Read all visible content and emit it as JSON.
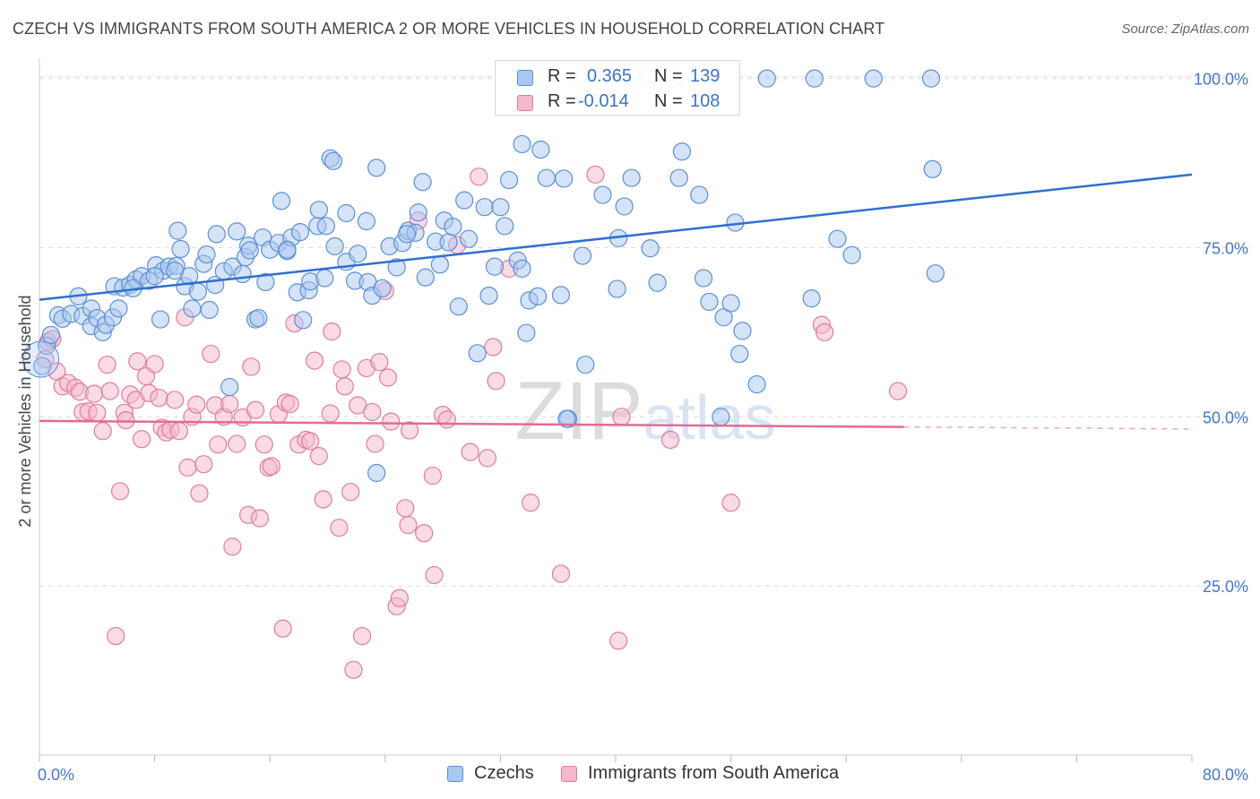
{
  "header": {
    "title": "CZECH VS IMMIGRANTS FROM SOUTH AMERICA 2 OR MORE VEHICLES IN HOUSEHOLD CORRELATION CHART",
    "source": "Source: ZipAtlas.com"
  },
  "watermark": "ZIPatlas",
  "legend_top": {
    "rows": [
      {
        "r_label": "R =",
        "r_value": "0.365",
        "n_label": "N =",
        "n_value": "139"
      },
      {
        "r_label": "R =",
        "r_value": "-0.014",
        "n_label": "N =",
        "n_value": "108"
      }
    ]
  },
  "colors": {
    "blue_fill": "#a9c8f0",
    "blue_stroke": "#5b8fd6",
    "blue_line": "#2f6fd0",
    "pink_fill": "#f6b8cc",
    "pink_stroke": "#e07ba0",
    "pink_line": "#e36a95",
    "grid": "#dcdcdc",
    "axis_text": "#4477cc"
  },
  "chart_data": {
    "type": "scatter",
    "title": "CZECH VS IMMIGRANTS FROM SOUTH AMERICA 2 OR MORE VEHICLES IN HOUSEHOLD CORRELATION CHART",
    "xlabel": "",
    "ylabel": "2 or more Vehicles in Household",
    "xlim": [
      0,
      80
    ],
    "ylim": [
      0,
      103
    ],
    "x_tick_labels": [
      "0.0%",
      "80.0%"
    ],
    "y_ticks": [
      25,
      50,
      75,
      100
    ],
    "y_tick_labels": [
      "25.0%",
      "50.0%",
      "75.0%",
      "100.0%"
    ],
    "grid": "horizontal dashed",
    "legend_position": "bottom",
    "series": [
      {
        "name": "Czechs",
        "R": 0.365,
        "N": 139,
        "trend": {
          "x": [
            0,
            80
          ],
          "y": [
            67.3,
            85.8
          ]
        },
        "points": [
          [
            0.2,
            57.5
          ],
          [
            0.5,
            60.5
          ],
          [
            0.8,
            62.1
          ],
          [
            1.3,
            65.0
          ],
          [
            1.6,
            64.5
          ],
          [
            2.2,
            65.2
          ],
          [
            2.7,
            67.8
          ],
          [
            3.0,
            64.9
          ],
          [
            3.6,
            63.4
          ],
          [
            3.6,
            66.0
          ],
          [
            4.0,
            64.6
          ],
          [
            4.4,
            62.5
          ],
          [
            4.6,
            63.6
          ],
          [
            5.1,
            64.7
          ],
          [
            5.2,
            69.3
          ],
          [
            5.8,
            69.1
          ],
          [
            6.3,
            69.5
          ],
          [
            6.7,
            70.3
          ],
          [
            7.1,
            70.8
          ],
          [
            7.6,
            70.1
          ],
          [
            8.1,
            72.4
          ],
          [
            8.4,
            64.4
          ],
          [
            8.6,
            71.6
          ],
          [
            9.0,
            72.2
          ],
          [
            9.5,
            72.3
          ],
          [
            9.6,
            77.5
          ],
          [
            9.8,
            74.8
          ],
          [
            10.1,
            69.3
          ],
          [
            10.4,
            70.8
          ],
          [
            10.6,
            66.0
          ],
          [
            11.0,
            68.5
          ],
          [
            11.4,
            72.6
          ],
          [
            11.6,
            74.0
          ],
          [
            12.2,
            69.5
          ],
          [
            12.3,
            77.0
          ],
          [
            12.8,
            71.5
          ],
          [
            13.4,
            72.2
          ],
          [
            13.7,
            77.4
          ],
          [
            14.1,
            71.1
          ],
          [
            14.3,
            73.6
          ],
          [
            14.5,
            75.3
          ],
          [
            15.0,
            64.4
          ],
          [
            15.2,
            64.6
          ],
          [
            15.5,
            76.5
          ],
          [
            15.7,
            69.9
          ],
          [
            16.0,
            74.7
          ],
          [
            16.6,
            75.7
          ],
          [
            16.8,
            81.9
          ],
          [
            17.2,
            74.5
          ],
          [
            17.5,
            76.5
          ],
          [
            17.9,
            68.4
          ],
          [
            18.1,
            77.3
          ],
          [
            18.3,
            64.3
          ],
          [
            18.7,
            68.7
          ],
          [
            18.8,
            70.0
          ],
          [
            19.3,
            78.2
          ],
          [
            19.4,
            80.6
          ],
          [
            19.9,
            78.2
          ],
          [
            20.2,
            88.2
          ],
          [
            20.4,
            87.8
          ],
          [
            20.5,
            75.2
          ],
          [
            21.3,
            72.9
          ],
          [
            21.3,
            80.1
          ],
          [
            21.9,
            70.1
          ],
          [
            22.1,
            74.1
          ],
          [
            22.7,
            78.9
          ],
          [
            22.8,
            69.9
          ],
          [
            23.1,
            67.9
          ],
          [
            23.4,
            86.8
          ],
          [
            23.8,
            69.0
          ],
          [
            24.3,
            75.2
          ],
          [
            24.8,
            72.1
          ],
          [
            25.2,
            75.7
          ],
          [
            25.6,
            77.5
          ],
          [
            26.1,
            77.2
          ],
          [
            26.3,
            80.2
          ],
          [
            26.6,
            84.7
          ],
          [
            26.8,
            70.6
          ],
          [
            27.5,
            75.9
          ],
          [
            27.8,
            72.5
          ],
          [
            28.1,
            79.0
          ],
          [
            28.4,
            75.8
          ],
          [
            28.7,
            78.1
          ],
          [
            29.1,
            66.3
          ],
          [
            29.5,
            82.0
          ],
          [
            29.8,
            76.3
          ],
          [
            30.4,
            59.4
          ],
          [
            30.9,
            81.0
          ],
          [
            31.2,
            67.9
          ],
          [
            31.6,
            72.2
          ],
          [
            32.0,
            81.0
          ],
          [
            32.3,
            78.2
          ],
          [
            32.6,
            85.0
          ],
          [
            33.2,
            73.1
          ],
          [
            33.5,
            71.9
          ],
          [
            33.8,
            62.4
          ],
          [
            34.0,
            67.2
          ],
          [
            34.6,
            67.8
          ],
          [
            34.8,
            89.5
          ],
          [
            35.2,
            85.3
          ],
          [
            36.2,
            68.0
          ],
          [
            36.4,
            85.2
          ],
          [
            36.7,
            49.7
          ],
          [
            37.4,
            100.0
          ],
          [
            37.7,
            73.8
          ],
          [
            37.9,
            57.7
          ],
          [
            39.1,
            82.8
          ],
          [
            40.2,
            76.4
          ],
          [
            40.1,
            68.9
          ],
          [
            40.6,
            81.1
          ],
          [
            41.1,
            85.3
          ],
          [
            42.2,
            100.0
          ],
          [
            42.4,
            74.9
          ],
          [
            42.9,
            69.8
          ],
          [
            44.4,
            85.3
          ],
          [
            44.6,
            89.2
          ],
          [
            45.8,
            82.8
          ],
          [
            46.1,
            70.5
          ],
          [
            46.5,
            67.0
          ],
          [
            47.5,
            64.7
          ],
          [
            48.0,
            66.8
          ],
          [
            48.3,
            78.7
          ],
          [
            48.6,
            59.3
          ],
          [
            48.8,
            62.7
          ],
          [
            49.8,
            54.8
          ],
          [
            50.5,
            100.0
          ],
          [
            53.6,
            67.5
          ],
          [
            53.8,
            100.0
          ],
          [
            55.4,
            76.3
          ],
          [
            56.4,
            73.9
          ],
          [
            57.9,
            100.0
          ],
          [
            61.9,
            100.0
          ],
          [
            62.0,
            86.6
          ],
          [
            62.2,
            71.2
          ],
          [
            47.3,
            50.0
          ],
          [
            36.6,
            49.7
          ],
          [
            25.5,
            77.0
          ],
          [
            14.6,
            74.6
          ],
          [
            13.2,
            54.4
          ],
          [
            11.8,
            65.8
          ],
          [
            9.4,
            71.6
          ],
          [
            8.0,
            70.8
          ],
          [
            23.4,
            41.7
          ],
          [
            33.5,
            90.3
          ],
          [
            44.0,
            100.0
          ],
          [
            19.8,
            70.5
          ],
          [
            5.5,
            66.0
          ],
          [
            6.5,
            69.0
          ],
          [
            17.2,
            74.7
          ]
        ]
      },
      {
        "name": "Immigrants from South America",
        "R": -0.014,
        "N": 108,
        "trend": {
          "x": [
            0,
            60
          ],
          "y": [
            49.4,
            48.5
          ]
        },
        "trend_dashed": {
          "x": [
            60,
            80
          ],
          "y": [
            48.5,
            48.2
          ]
        },
        "points": [
          [
            0.4,
            58.5
          ],
          [
            0.6,
            61.1
          ],
          [
            0.9,
            61.5
          ],
          [
            1.2,
            56.7
          ],
          [
            1.6,
            54.5
          ],
          [
            2.0,
            55.0
          ],
          [
            2.5,
            54.3
          ],
          [
            2.8,
            53.7
          ],
          [
            3.0,
            50.7
          ],
          [
            3.4,
            50.8
          ],
          [
            3.8,
            53.4
          ],
          [
            4.0,
            50.6
          ],
          [
            4.4,
            47.9
          ],
          [
            4.7,
            57.7
          ],
          [
            4.9,
            53.8
          ],
          [
            5.3,
            17.6
          ],
          [
            5.6,
            39.0
          ],
          [
            5.9,
            50.6
          ],
          [
            6.0,
            49.5
          ],
          [
            6.3,
            53.3
          ],
          [
            6.7,
            52.5
          ],
          [
            6.8,
            58.2
          ],
          [
            7.1,
            46.7
          ],
          [
            7.4,
            56.0
          ],
          [
            7.6,
            53.5
          ],
          [
            8.0,
            57.8
          ],
          [
            8.3,
            52.8
          ],
          [
            8.5,
            48.4
          ],
          [
            8.8,
            47.7
          ],
          [
            9.1,
            48.1
          ],
          [
            9.4,
            52.5
          ],
          [
            9.7,
            47.9
          ],
          [
            10.1,
            64.7
          ],
          [
            10.3,
            42.5
          ],
          [
            10.6,
            50.0
          ],
          [
            10.9,
            51.8
          ],
          [
            11.1,
            38.7
          ],
          [
            11.4,
            43.0
          ],
          [
            11.9,
            59.3
          ],
          [
            12.2,
            51.7
          ],
          [
            12.4,
            45.9
          ],
          [
            12.8,
            50.0
          ],
          [
            13.2,
            51.9
          ],
          [
            13.4,
            30.8
          ],
          [
            13.7,
            46.0
          ],
          [
            14.1,
            49.9
          ],
          [
            14.5,
            35.5
          ],
          [
            14.7,
            57.4
          ],
          [
            15.0,
            51.0
          ],
          [
            15.3,
            35.0
          ],
          [
            15.6,
            45.9
          ],
          [
            15.9,
            42.5
          ],
          [
            16.1,
            42.7
          ],
          [
            16.6,
            50.4
          ],
          [
            16.9,
            18.7
          ],
          [
            17.1,
            52.1
          ],
          [
            17.4,
            51.9
          ],
          [
            17.7,
            63.8
          ],
          [
            18.0,
            45.9
          ],
          [
            18.5,
            46.6
          ],
          [
            18.8,
            46.4
          ],
          [
            19.1,
            58.3
          ],
          [
            19.4,
            44.2
          ],
          [
            19.7,
            37.8
          ],
          [
            20.2,
            50.5
          ],
          [
            20.3,
            62.6
          ],
          [
            20.8,
            33.6
          ],
          [
            21.0,
            57.0
          ],
          [
            21.2,
            54.5
          ],
          [
            21.6,
            38.9
          ],
          [
            21.8,
            12.6
          ],
          [
            22.1,
            51.7
          ],
          [
            22.4,
            17.6
          ],
          [
            22.7,
            57.2
          ],
          [
            23.1,
            50.7
          ],
          [
            23.3,
            46.0
          ],
          [
            23.6,
            58.1
          ],
          [
            24.0,
            68.6
          ],
          [
            24.2,
            55.8
          ],
          [
            24.4,
            49.3
          ],
          [
            24.8,
            22.0
          ],
          [
            25.0,
            23.2
          ],
          [
            25.4,
            36.5
          ],
          [
            25.6,
            34.0
          ],
          [
            25.7,
            48.0
          ],
          [
            26.3,
            79.0
          ],
          [
            26.7,
            32.8
          ],
          [
            27.3,
            41.3
          ],
          [
            27.4,
            26.6
          ],
          [
            28.0,
            50.3
          ],
          [
            28.3,
            49.6
          ],
          [
            29.0,
            75.4
          ],
          [
            29.9,
            44.8
          ],
          [
            30.5,
            85.5
          ],
          [
            31.1,
            43.9
          ],
          [
            31.5,
            60.3
          ],
          [
            31.7,
            55.3
          ],
          [
            32.6,
            71.9
          ],
          [
            34.1,
            37.3
          ],
          [
            36.2,
            26.8
          ],
          [
            38.6,
            85.8
          ],
          [
            40.2,
            16.9
          ],
          [
            40.4,
            50.0
          ],
          [
            43.8,
            46.6
          ],
          [
            48.0,
            37.3
          ],
          [
            54.3,
            63.6
          ],
          [
            54.5,
            62.5
          ],
          [
            59.6,
            53.8
          ]
        ]
      }
    ]
  },
  "bottom_legend": {
    "items": [
      {
        "label": "Czechs"
      },
      {
        "label": "Immigrants from South America"
      }
    ]
  }
}
